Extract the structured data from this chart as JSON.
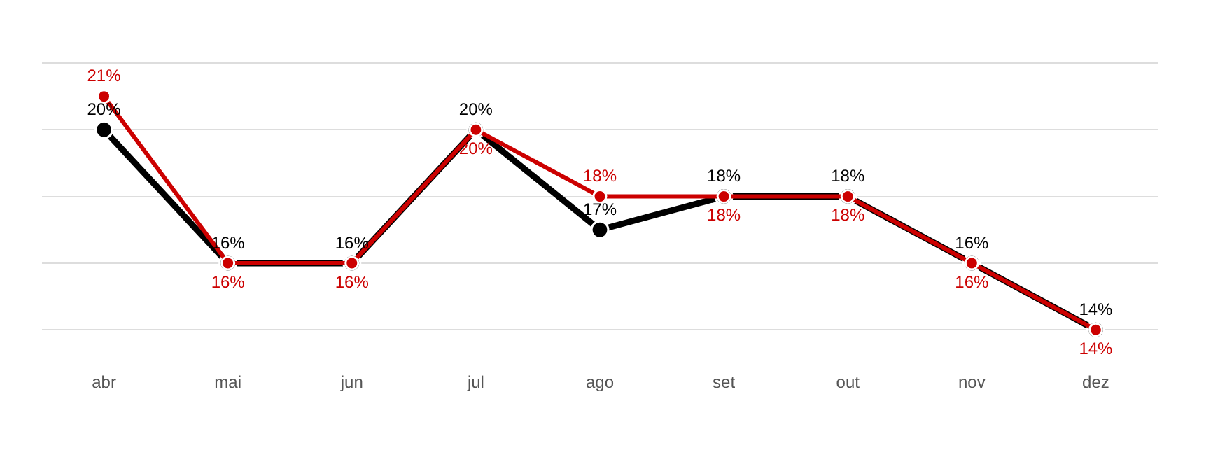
{
  "chart_data": {
    "type": "line",
    "categories": [
      "abr",
      "mai",
      "jun",
      "jul",
      "ago",
      "set",
      "out",
      "nov",
      "dez"
    ],
    "series": [
      {
        "color": "#000000",
        "values": [
          20,
          16,
          16,
          20,
          17,
          18,
          18,
          16,
          14
        ],
        "value_labels": [
          "20%",
          "16%",
          "16%",
          "20%",
          "17%",
          "18%",
          "18%",
          "16%",
          "14%"
        ]
      },
      {
        "color": "#cc0000",
        "values": [
          21,
          16,
          16,
          20,
          18,
          18,
          18,
          16,
          14
        ],
        "value_labels": [
          "21%",
          "16%",
          "16%",
          "20%",
          "18%",
          "18%",
          "18%",
          "16%",
          "14%"
        ]
      }
    ],
    "ylim": [
      14,
      22
    ],
    "yticks": [
      {
        "value": 14,
        "label": null
      },
      {
        "value": 16,
        "label": null
      },
      {
        "value": 18,
        "label": null
      },
      {
        "value": 20,
        "label": null
      },
      {
        "value": 22,
        "label": null
      }
    ],
    "grid": "y",
    "legend": false,
    "tick_labels": "x",
    "marker": "circle",
    "line_style": "solid"
  }
}
